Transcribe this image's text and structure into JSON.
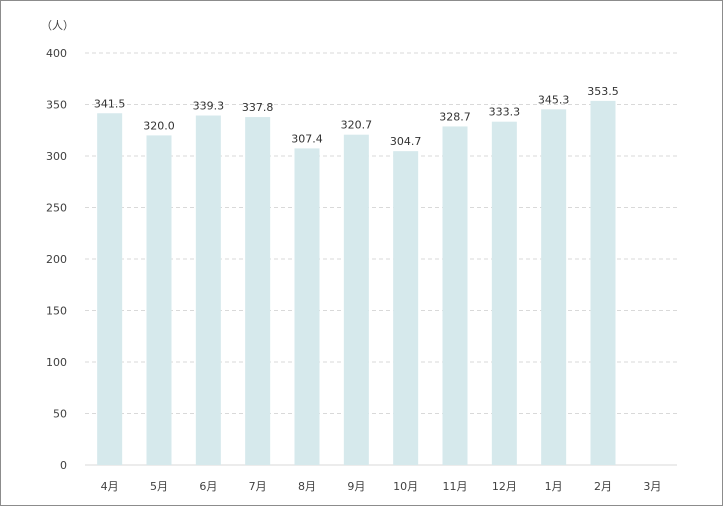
{
  "chart_data": {
    "type": "bar",
    "unit_label": "（人）",
    "categories": [
      "4月",
      "5月",
      "6月",
      "7月",
      "8月",
      "9月",
      "10月",
      "11月",
      "12月",
      "1月",
      "2月",
      "3月"
    ],
    "values": [
      341.5,
      320.0,
      339.3,
      337.8,
      307.4,
      320.7,
      304.7,
      328.7,
      333.3,
      345.3,
      353.5,
      null
    ],
    "value_labels": [
      "341.5",
      "320.0",
      "339.3",
      "337.8",
      "307.4",
      "320.7",
      "304.7",
      "328.7",
      "333.3",
      "345.3",
      "353.5",
      ""
    ],
    "ylim": [
      0,
      400
    ],
    "yticks": [
      "0",
      "50",
      "100",
      "150",
      "200",
      "250",
      "300",
      "350",
      "400"
    ],
    "grid": true,
    "legend": "none",
    "colors": {
      "bar": "#d6e9ec",
      "grid": "#d9d9d9",
      "text": "#404040",
      "border": "#8c8c8c"
    }
  }
}
